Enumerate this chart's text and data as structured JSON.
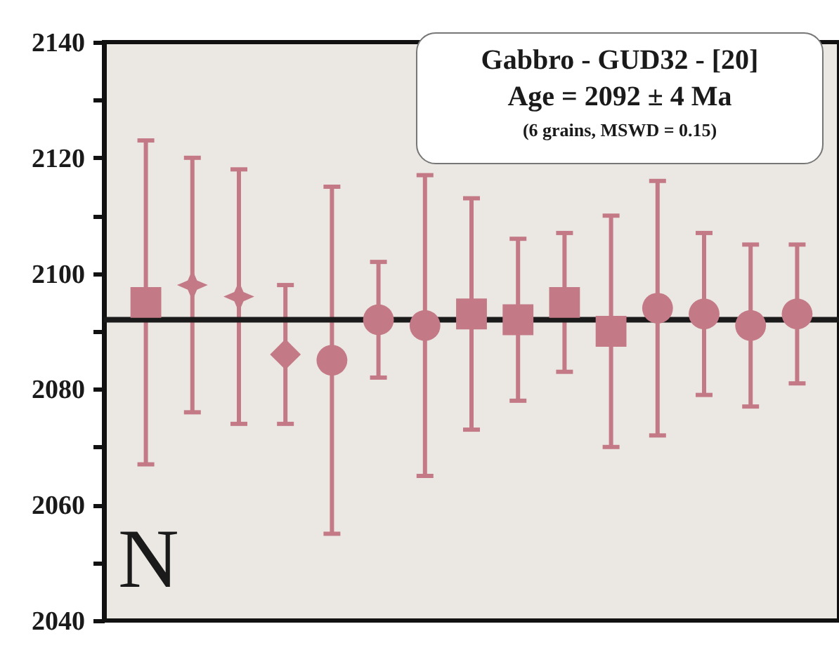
{
  "chart_data": {
    "type": "scatter",
    "categories": [
      null,
      null,
      null,
      null,
      null,
      null,
      null,
      null,
      null,
      null,
      null,
      null,
      null,
      null,
      null
    ],
    "series": [
      {
        "color": "#c47a86",
        "marker": "square",
        "values": [
          2095,
          null,
          null,
          null,
          null,
          null,
          null,
          null,
          null,
          null,
          null,
          null,
          null,
          null,
          null
        ],
        "errors": [
          [
            2067,
            2123
          ],
          null,
          null,
          null,
          null,
          null,
          null,
          null,
          null,
          null,
          null,
          null,
          null,
          null,
          null
        ]
      },
      {
        "color": "#c47a86",
        "marker": "star",
        "values": [
          null,
          2098,
          2096,
          null,
          null,
          null,
          null,
          null,
          null,
          null,
          null,
          null,
          null,
          null,
          null
        ],
        "errors": [
          null,
          [
            2076,
            2120
          ],
          [
            2074,
            2118
          ],
          null,
          null,
          null,
          null,
          null,
          null,
          null,
          null,
          null,
          null,
          null,
          null
        ]
      },
      {
        "color": "#c47a86",
        "marker": "diamond",
        "values": [
          null,
          null,
          null,
          2086,
          null,
          null,
          null,
          null,
          null,
          null,
          null,
          null,
          null,
          null,
          null
        ],
        "errors": [
          null,
          null,
          null,
          [
            2074,
            2098
          ],
          null,
          null,
          null,
          null,
          null,
          null,
          null,
          null,
          null,
          null,
          null
        ]
      },
      {
        "color": "#c47a86",
        "marker": "circle",
        "values": [
          null,
          null,
          null,
          null,
          2085,
          2092,
          2091,
          null,
          null,
          null,
          null,
          null,
          null,
          null,
          null
        ],
        "errors": [
          null,
          null,
          null,
          null,
          [
            2055,
            2115
          ],
          [
            2082,
            2102
          ],
          [
            2065,
            2117
          ],
          null,
          null,
          null,
          null,
          null,
          null,
          null,
          null
        ]
      },
      {
        "color": "#c47a86",
        "marker": "square",
        "values": [
          null,
          null,
          null,
          null,
          null,
          null,
          null,
          2093,
          2092,
          2095,
          2090,
          null,
          null,
          null,
          null
        ],
        "errors": [
          null,
          null,
          null,
          null,
          null,
          null,
          null,
          [
            2073,
            2113
          ],
          [
            2078,
            2106
          ],
          [
            2083,
            2107
          ],
          [
            2070,
            2110
          ],
          null,
          null,
          null,
          null
        ]
      },
      {
        "color": "#c47a86",
        "marker": "circle",
        "values": [
          null,
          null,
          null,
          null,
          null,
          null,
          null,
          null,
          null,
          null,
          null,
          2094,
          2093,
          2091,
          2093
        ],
        "errors": [
          null,
          null,
          null,
          null,
          null,
          null,
          null,
          null,
          null,
          null,
          null,
          [
            2072,
            2116
          ],
          [
            2079,
            2107
          ],
          [
            2077,
            2105
          ],
          [
            2081,
            2105
          ]
        ]
      }
    ],
    "ylim": [
      2040,
      2140
    ],
    "yticks": [
      2040,
      {
        "value": 2050,
        "label": null
      },
      2060,
      {
        "value": 2070,
        "label": null
      },
      2080,
      {
        "value": 2090,
        "label": null
      },
      2100,
      {
        "value": 2110,
        "label": null
      },
      2120,
      {
        "value": 2130,
        "label": null
      },
      2140
    ],
    "tick_labels": "y",
    "ref_lines": [
      {
        "axis": "y",
        "value": 2092,
        "color": "#1a1a1a"
      }
    ],
    "annotations": [
      "Gabbro - GUD32 - [20]",
      "Age = 2092 ± 4 Ma",
      "(6 grains, MSWD = 0.15)",
      "N"
    ]
  }
}
